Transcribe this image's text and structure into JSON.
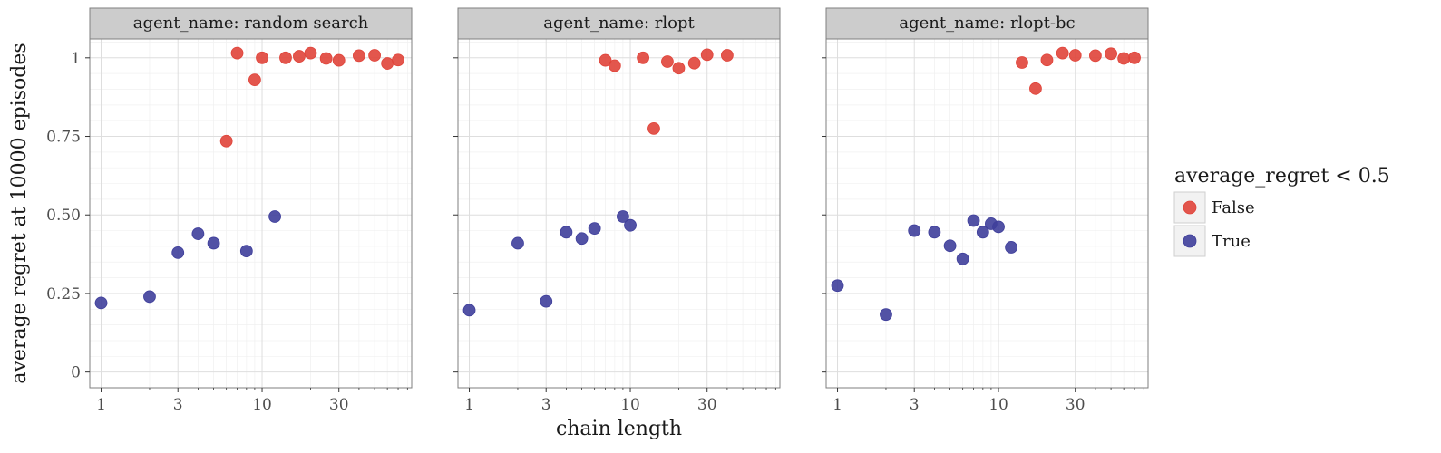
{
  "chart_data": {
    "type": "scatter",
    "xlabel": "chain length",
    "ylabel": "average regret at 10000 episodes",
    "x_scale": "log10",
    "xlim": [
      0.85,
      85
    ],
    "ylim": [
      -0.05,
      1.06
    ],
    "x_ticks": [
      1,
      3,
      10,
      30
    ],
    "x_tick_labels": [
      "1",
      "3",
      "10",
      "30"
    ],
    "y_ticks": [
      0,
      0.25,
      0.5,
      0.75,
      1
    ],
    "y_tick_labels": [
      "0",
      "0.25",
      "0.50",
      "0.75",
      "1"
    ],
    "grid": true,
    "legend": {
      "title": "average_regret < 0.5",
      "position": "right",
      "entries": [
        {
          "label": "False",
          "color": "#e0443a"
        },
        {
          "label": "True",
          "color": "#3f3f9b"
        }
      ]
    },
    "panels": [
      {
        "strip": "agent_name: random search",
        "points": [
          {
            "x": 1,
            "y": 0.22,
            "group": "True"
          },
          {
            "x": 2,
            "y": 0.24,
            "group": "True"
          },
          {
            "x": 3,
            "y": 0.38,
            "group": "True"
          },
          {
            "x": 4,
            "y": 0.44,
            "group": "True"
          },
          {
            "x": 5,
            "y": 0.41,
            "group": "True"
          },
          {
            "x": 6,
            "y": 0.735,
            "group": "False"
          },
          {
            "x": 7,
            "y": 1.015,
            "group": "False"
          },
          {
            "x": 8,
            "y": 0.385,
            "group": "True"
          },
          {
            "x": 9,
            "y": 0.93,
            "group": "False"
          },
          {
            "x": 10,
            "y": 1.0,
            "group": "False"
          },
          {
            "x": 12,
            "y": 0.495,
            "group": "True"
          },
          {
            "x": 14,
            "y": 1.0,
            "group": "False"
          },
          {
            "x": 17,
            "y": 1.005,
            "group": "False"
          },
          {
            "x": 20,
            "y": 1.015,
            "group": "False"
          },
          {
            "x": 25,
            "y": 0.998,
            "group": "False"
          },
          {
            "x": 30,
            "y": 0.992,
            "group": "False"
          },
          {
            "x": 40,
            "y": 1.007,
            "group": "False"
          },
          {
            "x": 50,
            "y": 1.008,
            "group": "False"
          },
          {
            "x": 60,
            "y": 0.982,
            "group": "False"
          },
          {
            "x": 70,
            "y": 0.993,
            "group": "False"
          }
        ]
      },
      {
        "strip": "agent_name: rlopt",
        "points": [
          {
            "x": 1,
            "y": 0.197,
            "group": "True"
          },
          {
            "x": 2,
            "y": 0.41,
            "group": "True"
          },
          {
            "x": 3,
            "y": 0.225,
            "group": "True"
          },
          {
            "x": 4,
            "y": 0.445,
            "group": "True"
          },
          {
            "x": 5,
            "y": 0.425,
            "group": "True"
          },
          {
            "x": 6,
            "y": 0.457,
            "group": "True"
          },
          {
            "x": 7,
            "y": 0.992,
            "group": "False"
          },
          {
            "x": 8,
            "y": 0.975,
            "group": "False"
          },
          {
            "x": 9,
            "y": 0.495,
            "group": "True"
          },
          {
            "x": 10,
            "y": 0.467,
            "group": "True"
          },
          {
            "x": 12,
            "y": 1.0,
            "group": "False"
          },
          {
            "x": 14,
            "y": 0.775,
            "group": "False"
          },
          {
            "x": 17,
            "y": 0.988,
            "group": "False"
          },
          {
            "x": 20,
            "y": 0.967,
            "group": "False"
          },
          {
            "x": 25,
            "y": 0.983,
            "group": "False"
          },
          {
            "x": 30,
            "y": 1.01,
            "group": "False"
          },
          {
            "x": 40,
            "y": 1.008,
            "group": "False"
          }
        ]
      },
      {
        "strip": "agent_name: rlopt-bc",
        "points": [
          {
            "x": 1,
            "y": 0.275,
            "group": "True"
          },
          {
            "x": 2,
            "y": 0.183,
            "group": "True"
          },
          {
            "x": 3,
            "y": 0.45,
            "group": "True"
          },
          {
            "x": 4,
            "y": 0.445,
            "group": "True"
          },
          {
            "x": 5,
            "y": 0.402,
            "group": "True"
          },
          {
            "x": 6,
            "y": 0.36,
            "group": "True"
          },
          {
            "x": 7,
            "y": 0.482,
            "group": "True"
          },
          {
            "x": 8,
            "y": 0.445,
            "group": "True"
          },
          {
            "x": 9,
            "y": 0.472,
            "group": "True"
          },
          {
            "x": 10,
            "y": 0.462,
            "group": "True"
          },
          {
            "x": 12,
            "y": 0.397,
            "group": "True"
          },
          {
            "x": 14,
            "y": 0.985,
            "group": "False"
          },
          {
            "x": 17,
            "y": 0.902,
            "group": "False"
          },
          {
            "x": 20,
            "y": 0.993,
            "group": "False"
          },
          {
            "x": 25,
            "y": 1.015,
            "group": "False"
          },
          {
            "x": 30,
            "y": 1.008,
            "group": "False"
          },
          {
            "x": 40,
            "y": 1.007,
            "group": "False"
          },
          {
            "x": 50,
            "y": 1.013,
            "group": "False"
          },
          {
            "x": 60,
            "y": 0.998,
            "group": "False"
          },
          {
            "x": 70,
            "y": 1.0,
            "group": "False"
          }
        ]
      }
    ]
  }
}
